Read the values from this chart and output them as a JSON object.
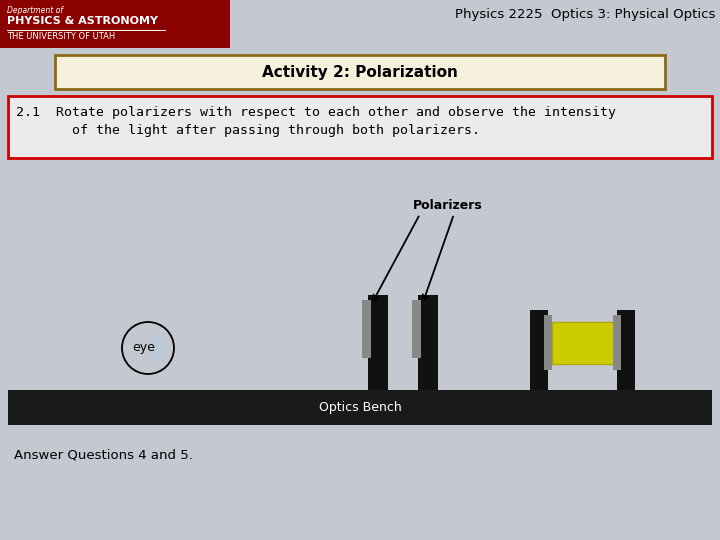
{
  "title_text": "Physics 2225  Optics 3: Physical Optics",
  "activity_title": "Activity 2: Polarization",
  "instruction_line1": "2.1  Rotate polarizers with respect to each other and observe the intensity",
  "instruction_line2": "       of the light after passing through both polarizers.",
  "answer_text": "Answer Questions 4 and 5.",
  "polarizers_label": "Polarizers",
  "bench_label": "Optics Bench",
  "eye_label": "eye",
  "bg_color": "#c4c8d0",
  "header_bg": "#8b0000",
  "activity_box_fill": "#f5f0dc",
  "activity_box_border": "#8b6914",
  "instruction_box_border": "#cc0000",
  "instruction_box_fill": "#ebebeb",
  "bench_color": "#1a1a1a",
  "stand_color": "#111111",
  "lens_color": "#888888",
  "light_color": "#cccc00",
  "title_fontsize": 9.5,
  "activity_fontsize": 11,
  "instruction_fontsize": 9.5,
  "answer_fontsize": 9.5,
  "label_fontsize": 9
}
